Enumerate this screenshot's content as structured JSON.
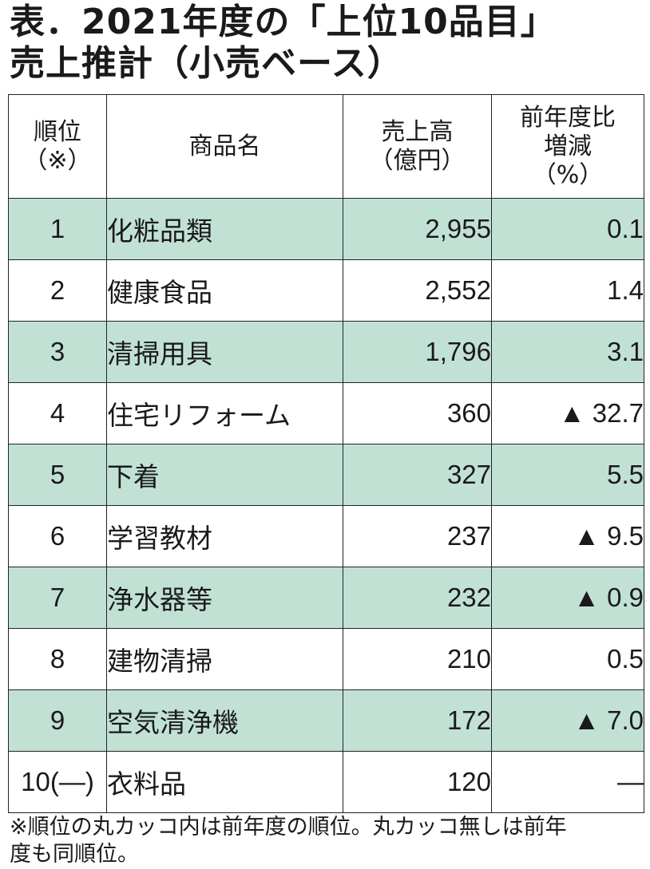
{
  "title": {
    "line1": "表．2021年度の「上位10品目」",
    "line2": "売上推計（小売ベース）"
  },
  "table": {
    "headers": {
      "rank": [
        "順位",
        "（※）"
      ],
      "name": [
        "商品名"
      ],
      "sales": [
        "売上高",
        "（億円）"
      ],
      "yoy": [
        "前年度比",
        "増減",
        "（%）"
      ]
    },
    "rows": [
      {
        "rank": "1",
        "name": "化粧品類",
        "sales": "2,955",
        "yoy": "0.1"
      },
      {
        "rank": "2",
        "name": "健康食品",
        "sales": "2,552",
        "yoy": "1.4"
      },
      {
        "rank": "3",
        "name": "清掃用具",
        "sales": "1,796",
        "yoy": "3.1"
      },
      {
        "rank": "4",
        "name": "住宅リフォーム",
        "sales": "360",
        "yoy": "▲ 32.7"
      },
      {
        "rank": "5",
        "name": "下着",
        "sales": "327",
        "yoy": "5.5"
      },
      {
        "rank": "6",
        "name": "学習教材",
        "sales": "237",
        "yoy": "▲ 9.5"
      },
      {
        "rank": "7",
        "name": "浄水器等",
        "sales": "232",
        "yoy": "▲ 0.9"
      },
      {
        "rank": "8",
        "name": "建物清掃",
        "sales": "210",
        "yoy": "0.5"
      },
      {
        "rank": "9",
        "name": "空気清浄機",
        "sales": "172",
        "yoy": "▲ 7.0"
      },
      {
        "rank": "10(—)",
        "name": "衣料品",
        "sales": "120",
        "yoy": "—"
      }
    ]
  },
  "footnote": [
    "※順位の丸カッコ内は前年度の順位。丸カッコ無しは前年",
    "度も同順位。"
  ],
  "colors": {
    "row_shade": "#c2e1d5",
    "text": "#1a1a1a",
    "border": "#222222"
  }
}
